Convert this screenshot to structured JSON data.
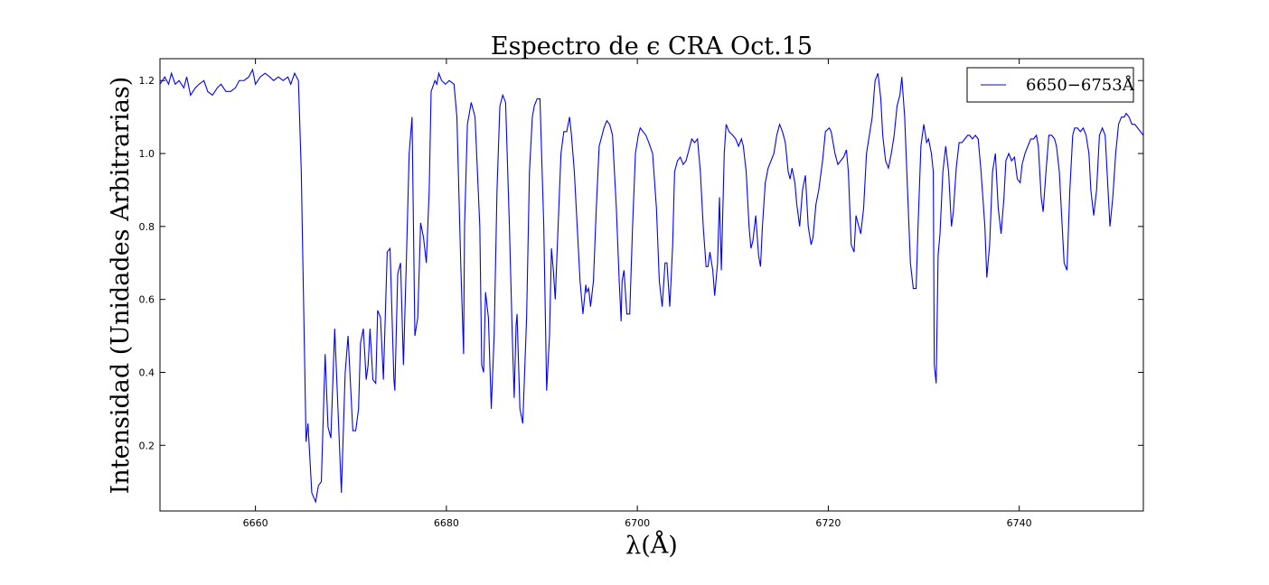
{
  "chart_data": {
    "type": "line",
    "title": "Espectro de ϵ CRA Oct.15",
    "x_label": "λ(Å)",
    "y_label": "Intensidad (Unidades Arbitrarias)",
    "x": [
      6650.0,
      6650.5,
      6650.9,
      6651.2,
      6651.6,
      6652.0,
      6652.5,
      6652.8,
      6653.2,
      6653.7,
      6654.1,
      6654.6,
      6655.0,
      6655.5,
      6656.0,
      6656.4,
      6656.9,
      6657.4,
      6657.9,
      6658.3,
      6658.8,
      6659.3,
      6659.7,
      6660.0,
      6660.5,
      6661.0,
      6661.5,
      6661.9,
      6662.4,
      6662.9,
      6663.4,
      6663.7,
      6664.1,
      6664.5,
      6664.8,
      6665.3,
      6665.5,
      6665.9,
      6666.3,
      6666.6,
      6666.9,
      6667.3,
      6667.6,
      6667.9,
      6668.3,
      6669.0,
      6669.4,
      6669.7,
      6670.2,
      6670.5,
      6670.8,
      6671.0,
      6671.3,
      6671.6,
      6671.8,
      6672.0,
      6672.3,
      6672.6,
      6672.8,
      6673.1,
      6673.4,
      6673.8,
      6674.1,
      6674.5,
      6674.6,
      6674.9,
      6675.2,
      6675.5,
      6675.8,
      6676.1,
      6676.4,
      6676.7,
      6677.0,
      6677.3,
      6677.6,
      6677.9,
      6678.2,
      6678.4,
      6678.8,
      6679.0,
      6679.2,
      6679.5,
      6679.9,
      6680.3,
      6680.8,
      6681.1,
      6681.5,
      6681.8,
      6681.9,
      6682.2,
      6682.6,
      6683.0,
      6683.5,
      6683.7,
      6683.9,
      6684.1,
      6684.4,
      6684.7,
      6685.0,
      6685.3,
      6685.6,
      6685.9,
      6686.2,
      6686.6,
      6686.9,
      6687.1,
      6687.3,
      6687.4,
      6687.7,
      6688.0,
      6688.4,
      6688.7,
      6689.0,
      6689.2,
      6689.5,
      6689.8,
      6690.2,
      6690.5,
      6690.8,
      6691.0,
      6691.2,
      6691.4,
      6691.7,
      6692.0,
      6692.3,
      6692.6,
      6692.9,
      6693.1,
      6693.4,
      6693.7,
      6694.0,
      6694.3,
      6694.6,
      6694.7,
      6694.9,
      6695.1,
      6695.4,
      6695.7,
      6696.0,
      6696.3,
      6696.5,
      6696.8,
      6697.1,
      6697.4,
      6697.8,
      6698.1,
      6698.3,
      6698.4,
      6698.6,
      6698.9,
      6699.2,
      6699.5,
      6699.8,
      6700.1,
      6700.3,
      6700.6,
      6700.9,
      6701.2,
      6701.6,
      6702.0,
      6702.3,
      6702.6,
      6702.9,
      6703.1,
      6703.4,
      6703.7,
      6703.9,
      6704.2,
      6704.5,
      6704.8,
      6705.1,
      6705.5,
      6705.7,
      6706.0,
      6706.3,
      6706.6,
      6706.9,
      6707.2,
      6707.4,
      6707.6,
      6707.9,
      6708.1,
      6708.4,
      6708.6,
      6708.8,
      6709.1,
      6709.3,
      6709.6,
      6710.0,
      6710.3,
      6710.6,
      6710.9,
      6711.1,
      6711.4,
      6711.7,
      6711.9,
      6712.1,
      6712.4,
      6712.7,
      6712.9,
      6713.1,
      6713.4,
      6713.7,
      6714.0,
      6714.3,
      6714.6,
      6714.9,
      6715.2,
      6715.5,
      6715.8,
      6716.0,
      6716.2,
      6716.5,
      6716.7,
      6717.0,
      6717.3,
      6717.6,
      6717.9,
      6718.2,
      6718.4,
      6718.7,
      6719.0,
      6719.4,
      6719.7,
      6720.1,
      6720.3,
      6720.7,
      6721.0,
      6721.3,
      6721.6,
      6721.9,
      6722.1,
      6722.4,
      6722.7,
      6722.9,
      6723.2,
      6723.4,
      6723.7,
      6724.0,
      6724.3,
      6724.6,
      6724.9,
      6725.2,
      6725.5,
      6725.7,
      6726.0,
      6726.3,
      6726.6,
      6726.9,
      6727.2,
      6727.5,
      6727.7,
      6728.0,
      6728.3,
      6728.6,
      6728.9,
      6729.2,
      6729.4,
      6729.7,
      6730.0,
      6730.3,
      6730.5,
      6730.8,
      6731.0,
      6731.1,
      6731.3,
      6731.5,
      6731.7,
      6732.0,
      6732.3,
      6732.6,
      6732.9,
      6733.1,
      6733.4,
      6733.7,
      6734.0,
      6734.3,
      6734.6,
      6734.8,
      6735.1,
      6735.4,
      6735.7,
      6736.0,
      6736.4,
      6736.6,
      6736.9,
      6737.2,
      6737.5,
      6737.8,
      6738.1,
      6738.4,
      6738.6,
      6738.9,
      6739.2,
      6739.5,
      6739.8,
      6740.1,
      6740.3,
      6740.6,
      6740.9,
      6741.2,
      6741.5,
      6741.8,
      6742.0,
      6742.3,
      6742.5,
      6742.8,
      6743.1,
      6743.4,
      6743.7,
      6743.9,
      6744.2,
      6744.5,
      6744.7,
      6745.0,
      6745.3,
      6745.6,
      6745.8,
      6746.1,
      6746.4,
      6746.7,
      6747.0,
      6747.3,
      6747.5,
      6747.8,
      6748.1,
      6748.4,
      6748.7,
      6749.0,
      6749.3,
      6749.5,
      6749.8,
      6750.1,
      6750.4,
      6750.7,
      6751.0,
      6751.2,
      6751.5,
      6751.8,
      6752.1,
      6752.4,
      6753.0
    ],
    "series": [
      {
        "name": "6650−6753Å",
        "color": "#0000ff",
        "values": [
          1.19,
          1.21,
          1.19,
          1.22,
          1.19,
          1.2,
          1.18,
          1.21,
          1.16,
          1.18,
          1.19,
          1.2,
          1.17,
          1.16,
          1.18,
          1.19,
          1.17,
          1.17,
          1.18,
          1.2,
          1.2,
          1.21,
          1.23,
          1.19,
          1.21,
          1.22,
          1.21,
          1.2,
          1.21,
          1.2,
          1.21,
          1.19,
          1.22,
          1.2,
          0.95,
          0.21,
          0.26,
          0.07,
          0.045,
          0.09,
          0.1,
          0.45,
          0.25,
          0.22,
          0.52,
          0.07,
          0.4,
          0.5,
          0.24,
          0.24,
          0.3,
          0.48,
          0.52,
          0.38,
          0.42,
          0.52,
          0.38,
          0.37,
          0.57,
          0.55,
          0.38,
          0.73,
          0.74,
          0.38,
          0.35,
          0.67,
          0.7,
          0.42,
          0.7,
          1.0,
          1.1,
          0.5,
          0.55,
          0.81,
          0.77,
          0.7,
          0.9,
          1.17,
          1.2,
          1.19,
          1.22,
          1.2,
          1.19,
          1.2,
          1.19,
          1.1,
          0.7,
          0.45,
          0.8,
          1.08,
          1.14,
          1.1,
          0.8,
          0.42,
          0.4,
          0.62,
          0.55,
          0.3,
          0.5,
          0.9,
          1.13,
          1.16,
          1.14,
          0.8,
          0.5,
          0.33,
          0.53,
          0.56,
          0.3,
          0.26,
          0.55,
          0.95,
          1.1,
          1.13,
          1.15,
          1.15,
          0.8,
          0.35,
          0.5,
          0.74,
          0.68,
          0.6,
          0.8,
          1.0,
          1.06,
          1.06,
          1.1,
          1.05,
          0.95,
          0.8,
          0.65,
          0.56,
          0.64,
          0.62,
          0.63,
          0.58,
          0.65,
          0.85,
          1.02,
          1.05,
          1.07,
          1.09,
          1.08,
          1.05,
          0.85,
          0.65,
          0.54,
          0.65,
          0.68,
          0.56,
          0.56,
          0.8,
          1.0,
          1.05,
          1.07,
          1.06,
          1.05,
          1.03,
          1.0,
          0.85,
          0.65,
          0.58,
          0.7,
          0.7,
          0.58,
          0.75,
          0.95,
          0.98,
          0.99,
          0.97,
          0.98,
          1.02,
          1.04,
          1.03,
          1.04,
          0.95,
          0.8,
          0.69,
          0.69,
          0.73,
          0.68,
          0.61,
          0.7,
          0.88,
          0.68,
          1.0,
          1.08,
          1.06,
          1.05,
          1.04,
          1.02,
          1.04,
          1.02,
          0.95,
          0.8,
          0.74,
          0.76,
          0.83,
          0.72,
          0.69,
          0.8,
          0.92,
          0.96,
          0.98,
          1.0,
          1.05,
          1.08,
          1.06,
          1.03,
          0.95,
          0.93,
          0.96,
          0.92,
          0.86,
          0.8,
          0.9,
          0.94,
          0.8,
          0.75,
          0.77,
          0.86,
          0.9,
          0.98,
          1.06,
          1.07,
          1.06,
          1.0,
          0.97,
          0.98,
          0.99,
          1.01,
          0.95,
          0.75,
          0.73,
          0.83,
          0.8,
          0.78,
          0.85,
          1.0,
          1.05,
          1.1,
          1.2,
          1.22,
          1.15,
          1.05,
          0.98,
          0.96,
          1.0,
          1.05,
          1.13,
          1.16,
          1.21,
          1.1,
          0.9,
          0.7,
          0.63,
          0.63,
          0.8,
          1.02,
          1.08,
          1.03,
          1.04,
          1.0,
          0.95,
          0.42,
          0.37,
          0.72,
          0.78,
          0.95,
          1.02,
          0.95,
          0.8,
          0.84,
          0.96,
          1.03,
          1.03,
          1.04,
          1.05,
          1.05,
          1.04,
          1.05,
          1.04,
          0.95,
          0.8,
          0.66,
          0.75,
          0.95,
          1.0,
          0.85,
          0.78,
          0.88,
          0.98,
          1.0,
          0.98,
          0.99,
          0.93,
          0.92,
          0.97,
          1.0,
          1.02,
          1.04,
          1.04,
          1.05,
          1.02,
          0.88,
          0.84,
          0.95,
          1.05,
          1.05,
          1.04,
          1.02,
          0.95,
          0.8,
          0.7,
          0.68,
          0.9,
          1.05,
          1.07,
          1.07,
          1.06,
          1.07,
          1.05,
          1.0,
          0.9,
          0.83,
          0.9,
          1.05,
          1.07,
          1.05,
          0.9,
          0.8,
          0.88,
          1.0,
          1.08,
          1.1,
          1.1,
          1.11,
          1.1,
          1.08,
          1.08,
          1.07,
          1.05
        ]
      }
    ],
    "xlim": [
      6650,
      6753
    ],
    "ylim": [
      0.02,
      1.26
    ],
    "xticks": [
      6660,
      6680,
      6700,
      6720,
      6740
    ],
    "yticks": [
      0.2,
      0.4,
      0.6,
      0.8,
      {
        "value": 1,
        "label": "1.0"
      },
      1.2
    ],
    "grid": false,
    "legend": "upper right"
  }
}
